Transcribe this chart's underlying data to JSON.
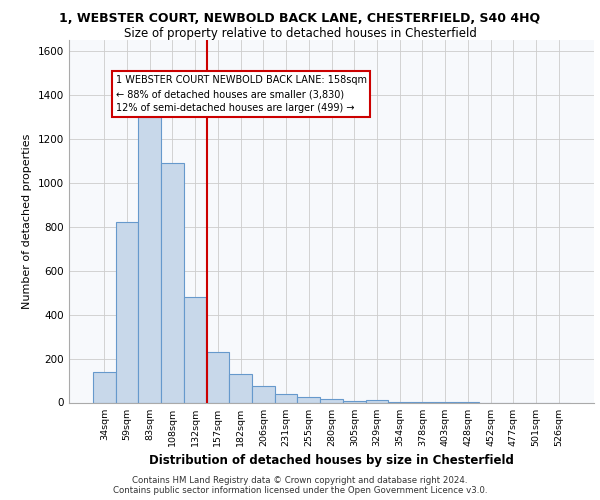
{
  "title1": "1, WEBSTER COURT, NEWBOLD BACK LANE, CHESTERFIELD, S40 4HQ",
  "title2": "Size of property relative to detached houses in Chesterfield",
  "xlabel": "Distribution of detached houses by size in Chesterfield",
  "ylabel": "Number of detached properties",
  "footer1": "Contains HM Land Registry data © Crown copyright and database right 2024.",
  "footer2": "Contains public sector information licensed under the Open Government Licence v3.0.",
  "bin_labels": [
    "34sqm",
    "59sqm",
    "83sqm",
    "108sqm",
    "132sqm",
    "157sqm",
    "182sqm",
    "206sqm",
    "231sqm",
    "255sqm",
    "280sqm",
    "305sqm",
    "329sqm",
    "354sqm",
    "378sqm",
    "403sqm",
    "428sqm",
    "452sqm",
    "477sqm",
    "501sqm",
    "526sqm"
  ],
  "bar_values": [
    140,
    820,
    1300,
    1090,
    480,
    230,
    130,
    75,
    40,
    27,
    15,
    8,
    12,
    4,
    2,
    1,
    2,
    0,
    0,
    0,
    0
  ],
  "bar_color": "#c8d8ea",
  "bar_edgecolor": "#6699cc",
  "property_line_idx": 5,
  "property_line_color": "#cc0000",
  "annotation_text": "1 WEBSTER COURT NEWBOLD BACK LANE: 158sqm\n← 88% of detached houses are smaller (3,830)\n12% of semi-detached houses are larger (499) →",
  "annotation_box_color": "#ffffff",
  "annotation_box_edgecolor": "#cc0000",
  "ylim": [
    0,
    1650
  ],
  "yticks": [
    0,
    200,
    400,
    600,
    800,
    1000,
    1200,
    1400,
    1600
  ],
  "bg_color": "#f7f9fc",
  "title1_fontsize": 9,
  "title2_fontsize": 8.5
}
